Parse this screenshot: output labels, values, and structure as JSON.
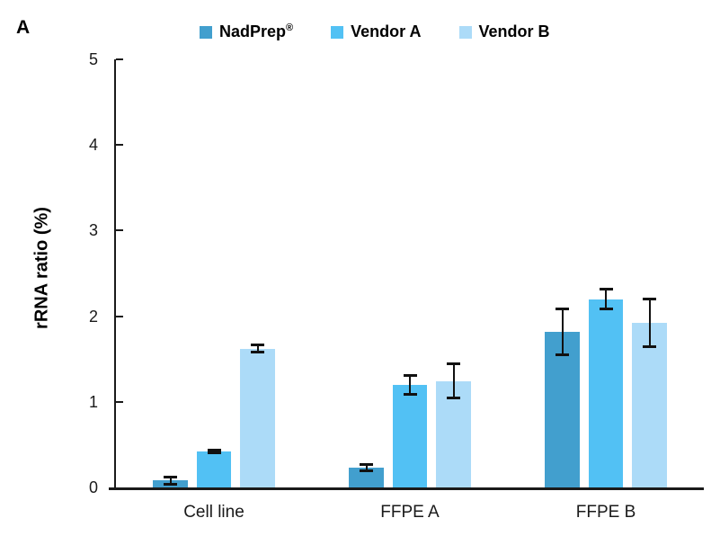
{
  "panel_label": "A",
  "chart_data": {
    "type": "bar",
    "title": "",
    "categories": [
      "Cell line",
      "FFPE A",
      "FFPE B"
    ],
    "series": [
      {
        "name": "NadPrep®",
        "color": "#429fce",
        "values": [
          0.08,
          0.23,
          1.82
        ],
        "errors": [
          0.04,
          0.04,
          0.27
        ]
      },
      {
        "name": "Vendor A",
        "color": "#52c1f4",
        "values": [
          0.42,
          1.2,
          2.2
        ],
        "errors": [
          0.02,
          0.11,
          0.12
        ]
      },
      {
        "name": "Vendor B",
        "color": "#acdbf8",
        "values": [
          1.62,
          1.24,
          1.92
        ],
        "errors": [
          0.04,
          0.2,
          0.28
        ]
      }
    ],
    "xlabel": "",
    "ylabel": "rRNA ratio (%)",
    "ylim": [
      0,
      5
    ],
    "yticks": [
      0,
      1,
      2,
      3,
      4,
      5
    ],
    "legend_position": "top",
    "grid": false,
    "error_bars": true,
    "axis_color": "#1a1a1a"
  }
}
